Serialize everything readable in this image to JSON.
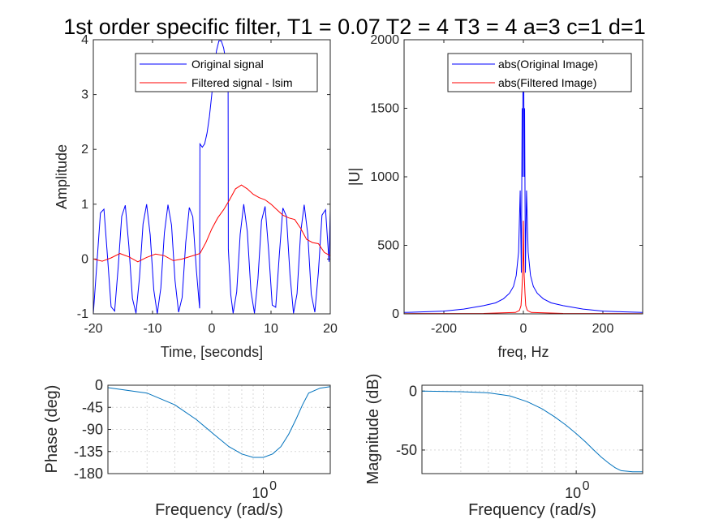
{
  "figure": {
    "title": "1st order specific filter, T1 = 0.07 T2 = 4 T3 = 4 a=3 c=1 d=1"
  },
  "colors": {
    "original": "#0000ff",
    "filtered": "#ff0000",
    "bode": "#0072bd",
    "axis": "#262626"
  },
  "chart_data": [
    {
      "id": "time",
      "type": "line",
      "xlabel": "Time, [seconds]",
      "ylabel": "Amplitude",
      "xlim": [
        -20,
        20
      ],
      "ylim": [
        -1,
        4
      ],
      "xticks": [
        "-20",
        "-10",
        "0",
        "10",
        "20"
      ],
      "yticks": [
        "-1",
        "0",
        "1",
        "2",
        "3",
        "4"
      ],
      "grid": false,
      "legend_position": "top-right",
      "series": [
        {
          "name": "Original signal",
          "color": "#0000ff",
          "x": [
            -20,
            -19.4,
            -18.8,
            -18.2,
            -17.6,
            -17.0,
            -16.4,
            -15.8,
            -15.2,
            -14.6,
            -14.0,
            -13.4,
            -12.8,
            -12.2,
            -11.6,
            -11.0,
            -10.4,
            -9.8,
            -9.2,
            -8.6,
            -8.0,
            -7.4,
            -6.8,
            -6.2,
            -5.6,
            -5.0,
            -4.4,
            -3.8,
            -3.2,
            -2.6,
            -2.05,
            -2.0,
            -1.6,
            -1.2,
            -0.8,
            -0.4,
            0.0,
            0.4,
            0.8,
            1.2,
            1.6,
            2.0,
            2.4,
            2.75,
            2.8,
            3.2,
            3.6,
            4.2,
            4.8,
            5.4,
            6.0,
            6.6,
            7.2,
            7.8,
            8.4,
            9.0,
            9.6,
            10.2,
            10.8,
            11.4,
            12.0,
            12.6,
            13.2,
            13.8,
            14.4,
            15.0,
            15.6,
            16.2,
            16.8,
            17.4,
            18.0,
            18.6,
            19.2,
            19.8,
            20.0
          ],
          "y": [
            -1.0,
            -0.08,
            0.84,
            0.91,
            0.04,
            -0.87,
            -0.95,
            -0.14,
            0.78,
            0.98,
            0.24,
            -0.72,
            -0.99,
            -0.34,
            0.64,
            1.0,
            0.44,
            -0.56,
            -1.0,
            -0.53,
            0.48,
            0.99,
            0.62,
            -0.39,
            -0.97,
            -0.7,
            0.3,
            0.94,
            0.77,
            -0.2,
            -0.9,
            2.1,
            2.04,
            2.1,
            2.3,
            2.6,
            3.0,
            3.45,
            3.8,
            3.98,
            3.98,
            3.85,
            3.6,
            3.35,
            0.18,
            -0.65,
            -0.99,
            -0.6,
            0.45,
            1.0,
            0.5,
            -0.58,
            -0.99,
            -0.36,
            0.7,
            0.96,
            0.15,
            -0.84,
            -0.88,
            0.07,
            0.93,
            0.78,
            -0.29,
            -0.99,
            -0.63,
            0.48,
            0.99,
            0.45,
            -0.64,
            -0.97,
            -0.24,
            0.8,
            0.9,
            -0.05,
            0.9
          ]
        },
        {
          "name": "Filtered signal - lsim",
          "color": "#ff0000",
          "x": [
            -20,
            -18.5,
            -17,
            -15.5,
            -14,
            -12.5,
            -11,
            -9.5,
            -8,
            -6.5,
            -5,
            -3.5,
            -2,
            -1,
            0,
            1,
            2,
            3,
            4,
            5,
            6,
            7,
            8,
            9,
            10,
            11,
            12,
            13,
            14,
            15,
            16,
            17,
            18,
            19,
            20
          ],
          "y": [
            0.0,
            -0.04,
            0.02,
            0.1,
            0.04,
            -0.05,
            0.03,
            0.09,
            0.06,
            -0.03,
            0.0,
            0.05,
            0.1,
            0.3,
            0.55,
            0.75,
            0.9,
            1.08,
            1.28,
            1.35,
            1.28,
            1.18,
            1.12,
            1.08,
            1.0,
            0.9,
            0.8,
            0.75,
            0.72,
            0.56,
            0.36,
            0.3,
            0.28,
            0.12,
            0.06
          ]
        }
      ]
    },
    {
      "id": "freq",
      "type": "line",
      "xlabel": "freq, Hz",
      "ylabel": "|U|",
      "xlim": [
        -300,
        300
      ],
      "ylim": [
        0,
        2000
      ],
      "xticks": [
        "-200",
        "0",
        "200"
      ],
      "yticks": [
        "0",
        "500",
        "1000",
        "1500",
        "2000"
      ],
      "grid": false,
      "legend_position": "top-right",
      "series": [
        {
          "name": "abs(Original Image)",
          "color": "#0000ff",
          "x": [
            -300,
            -250,
            -200,
            -150,
            -100,
            -70,
            -50,
            -35,
            -25,
            -18,
            -12,
            -8,
            -5,
            -3,
            -2,
            -1,
            0,
            1,
            2,
            3,
            5,
            8,
            12,
            18,
            25,
            35,
            50,
            70,
            100,
            150,
            200,
            250,
            300
          ],
          "y": [
            10,
            15,
            20,
            35,
            60,
            80,
            110,
            150,
            200,
            280,
            450,
            900,
            300,
            1500,
            1000,
            1700,
            1680,
            1700,
            1000,
            1500,
            300,
            900,
            450,
            280,
            200,
            150,
            110,
            80,
            60,
            35,
            20,
            15,
            10
          ]
        },
        {
          "name": "abs(Filtered Image)",
          "color": "#ff0000",
          "x": [
            -300,
            -100,
            -20,
            -10,
            -6,
            -4,
            -2,
            -1,
            0,
            1,
            2,
            4,
            6,
            10,
            20,
            100,
            300
          ],
          "y": [
            2,
            3,
            10,
            25,
            60,
            150,
            280,
            400,
            680,
            400,
            280,
            150,
            60,
            25,
            10,
            3,
            2
          ]
        }
      ]
    },
    {
      "id": "phase",
      "type": "line",
      "xlabel": "Frequency  (rad/s)",
      "ylabel": "Phase (deg)",
      "xscale": "log",
      "xlim": [
        0.2,
        2
      ],
      "ylim": [
        -180,
        0
      ],
      "xtick_labels": [
        {
          "base": "10",
          "exp": "0"
        }
      ],
      "yticks": [
        "0",
        "-45",
        "-90",
        "-135",
        "-180"
      ],
      "grid": true,
      "series": [
        {
          "color": "#0072bd",
          "x": [
            0.2,
            0.3,
            0.4,
            0.5,
            0.6,
            0.7,
            0.8,
            0.9,
            1.0,
            1.1,
            1.2,
            1.3,
            1.4,
            1.5,
            1.6,
            1.8,
            2.0
          ],
          "y": [
            -5,
            -16,
            -40,
            -70,
            -100,
            -125,
            -140,
            -147,
            -147,
            -140,
            -125,
            -100,
            -70,
            -40,
            -16,
            -6,
            -3
          ]
        }
      ]
    },
    {
      "id": "magnitude",
      "type": "line",
      "xlabel": "Frequency  (rad/s)",
      "ylabel": "Magnitude (dB)",
      "xscale": "log",
      "xlim": [
        0.2,
        2
      ],
      "ylim": [
        -70,
        5
      ],
      "xtick_labels": [
        {
          "base": "10",
          "exp": "0"
        }
      ],
      "yticks": [
        "0",
        "-50"
      ],
      "grid": true,
      "series": [
        {
          "color": "#0072bd",
          "x": [
            0.2,
            0.3,
            0.4,
            0.5,
            0.6,
            0.7,
            0.8,
            0.9,
            1.0,
            1.1,
            1.2,
            1.3,
            1.4,
            1.5,
            1.6,
            1.8,
            2.0
          ],
          "y": [
            0,
            -0.5,
            -1.5,
            -4,
            -9,
            -15,
            -22,
            -29,
            -36,
            -43,
            -50,
            -56,
            -61,
            -65,
            -67.5,
            -68.5,
            -68.5
          ]
        }
      ]
    }
  ]
}
